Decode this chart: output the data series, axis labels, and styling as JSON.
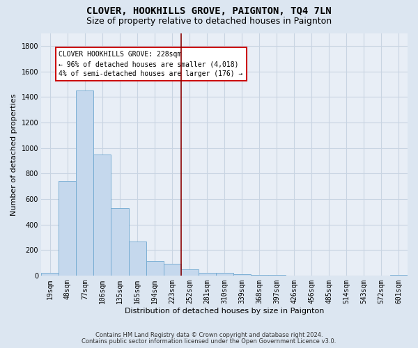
{
  "title": "CLOVER, HOOKHILLS GROVE, PAIGNTON, TQ4 7LN",
  "subtitle": "Size of property relative to detached houses in Paignton",
  "xlabel": "Distribution of detached houses by size in Paignton",
  "ylabel": "Number of detached properties",
  "categories": [
    "19sqm",
    "48sqm",
    "77sqm",
    "106sqm",
    "135sqm",
    "165sqm",
    "194sqm",
    "223sqm",
    "252sqm",
    "281sqm",
    "310sqm",
    "339sqm",
    "368sqm",
    "397sqm",
    "426sqm",
    "456sqm",
    "485sqm",
    "514sqm",
    "543sqm",
    "572sqm",
    "601sqm"
  ],
  "values": [
    20,
    740,
    1450,
    950,
    530,
    270,
    115,
    95,
    50,
    25,
    20,
    10,
    5,
    5,
    2,
    1,
    0,
    0,
    0,
    0,
    5
  ],
  "bar_color": "#c5d8ed",
  "bar_edge_color": "#6fa8d0",
  "vline_color": "#8b0000",
  "vline_x": 7.5,
  "annotation_text": "CLOVER HOOKHILLS GROVE: 228sqm\n← 96% of detached houses are smaller (4,018)\n4% of semi-detached houses are larger (176) →",
  "annotation_box_facecolor": "#ffffff",
  "annotation_box_edgecolor": "#cc0000",
  "ylim": [
    0,
    1900
  ],
  "yticks": [
    0,
    200,
    400,
    600,
    800,
    1000,
    1200,
    1400,
    1600,
    1800
  ],
  "footer1": "Contains HM Land Registry data © Crown copyright and database right 2024.",
  "footer2": "Contains public sector information licensed under the Open Government Licence v3.0.",
  "fig_bg_color": "#dce6f1",
  "plot_bg_color": "#e8eef6",
  "grid_color": "#c8d4e2",
  "title_fontsize": 10,
  "subtitle_fontsize": 9,
  "ylabel_fontsize": 8,
  "xlabel_fontsize": 8,
  "tick_fontsize": 7,
  "annot_fontsize": 7,
  "footer_fontsize": 6
}
